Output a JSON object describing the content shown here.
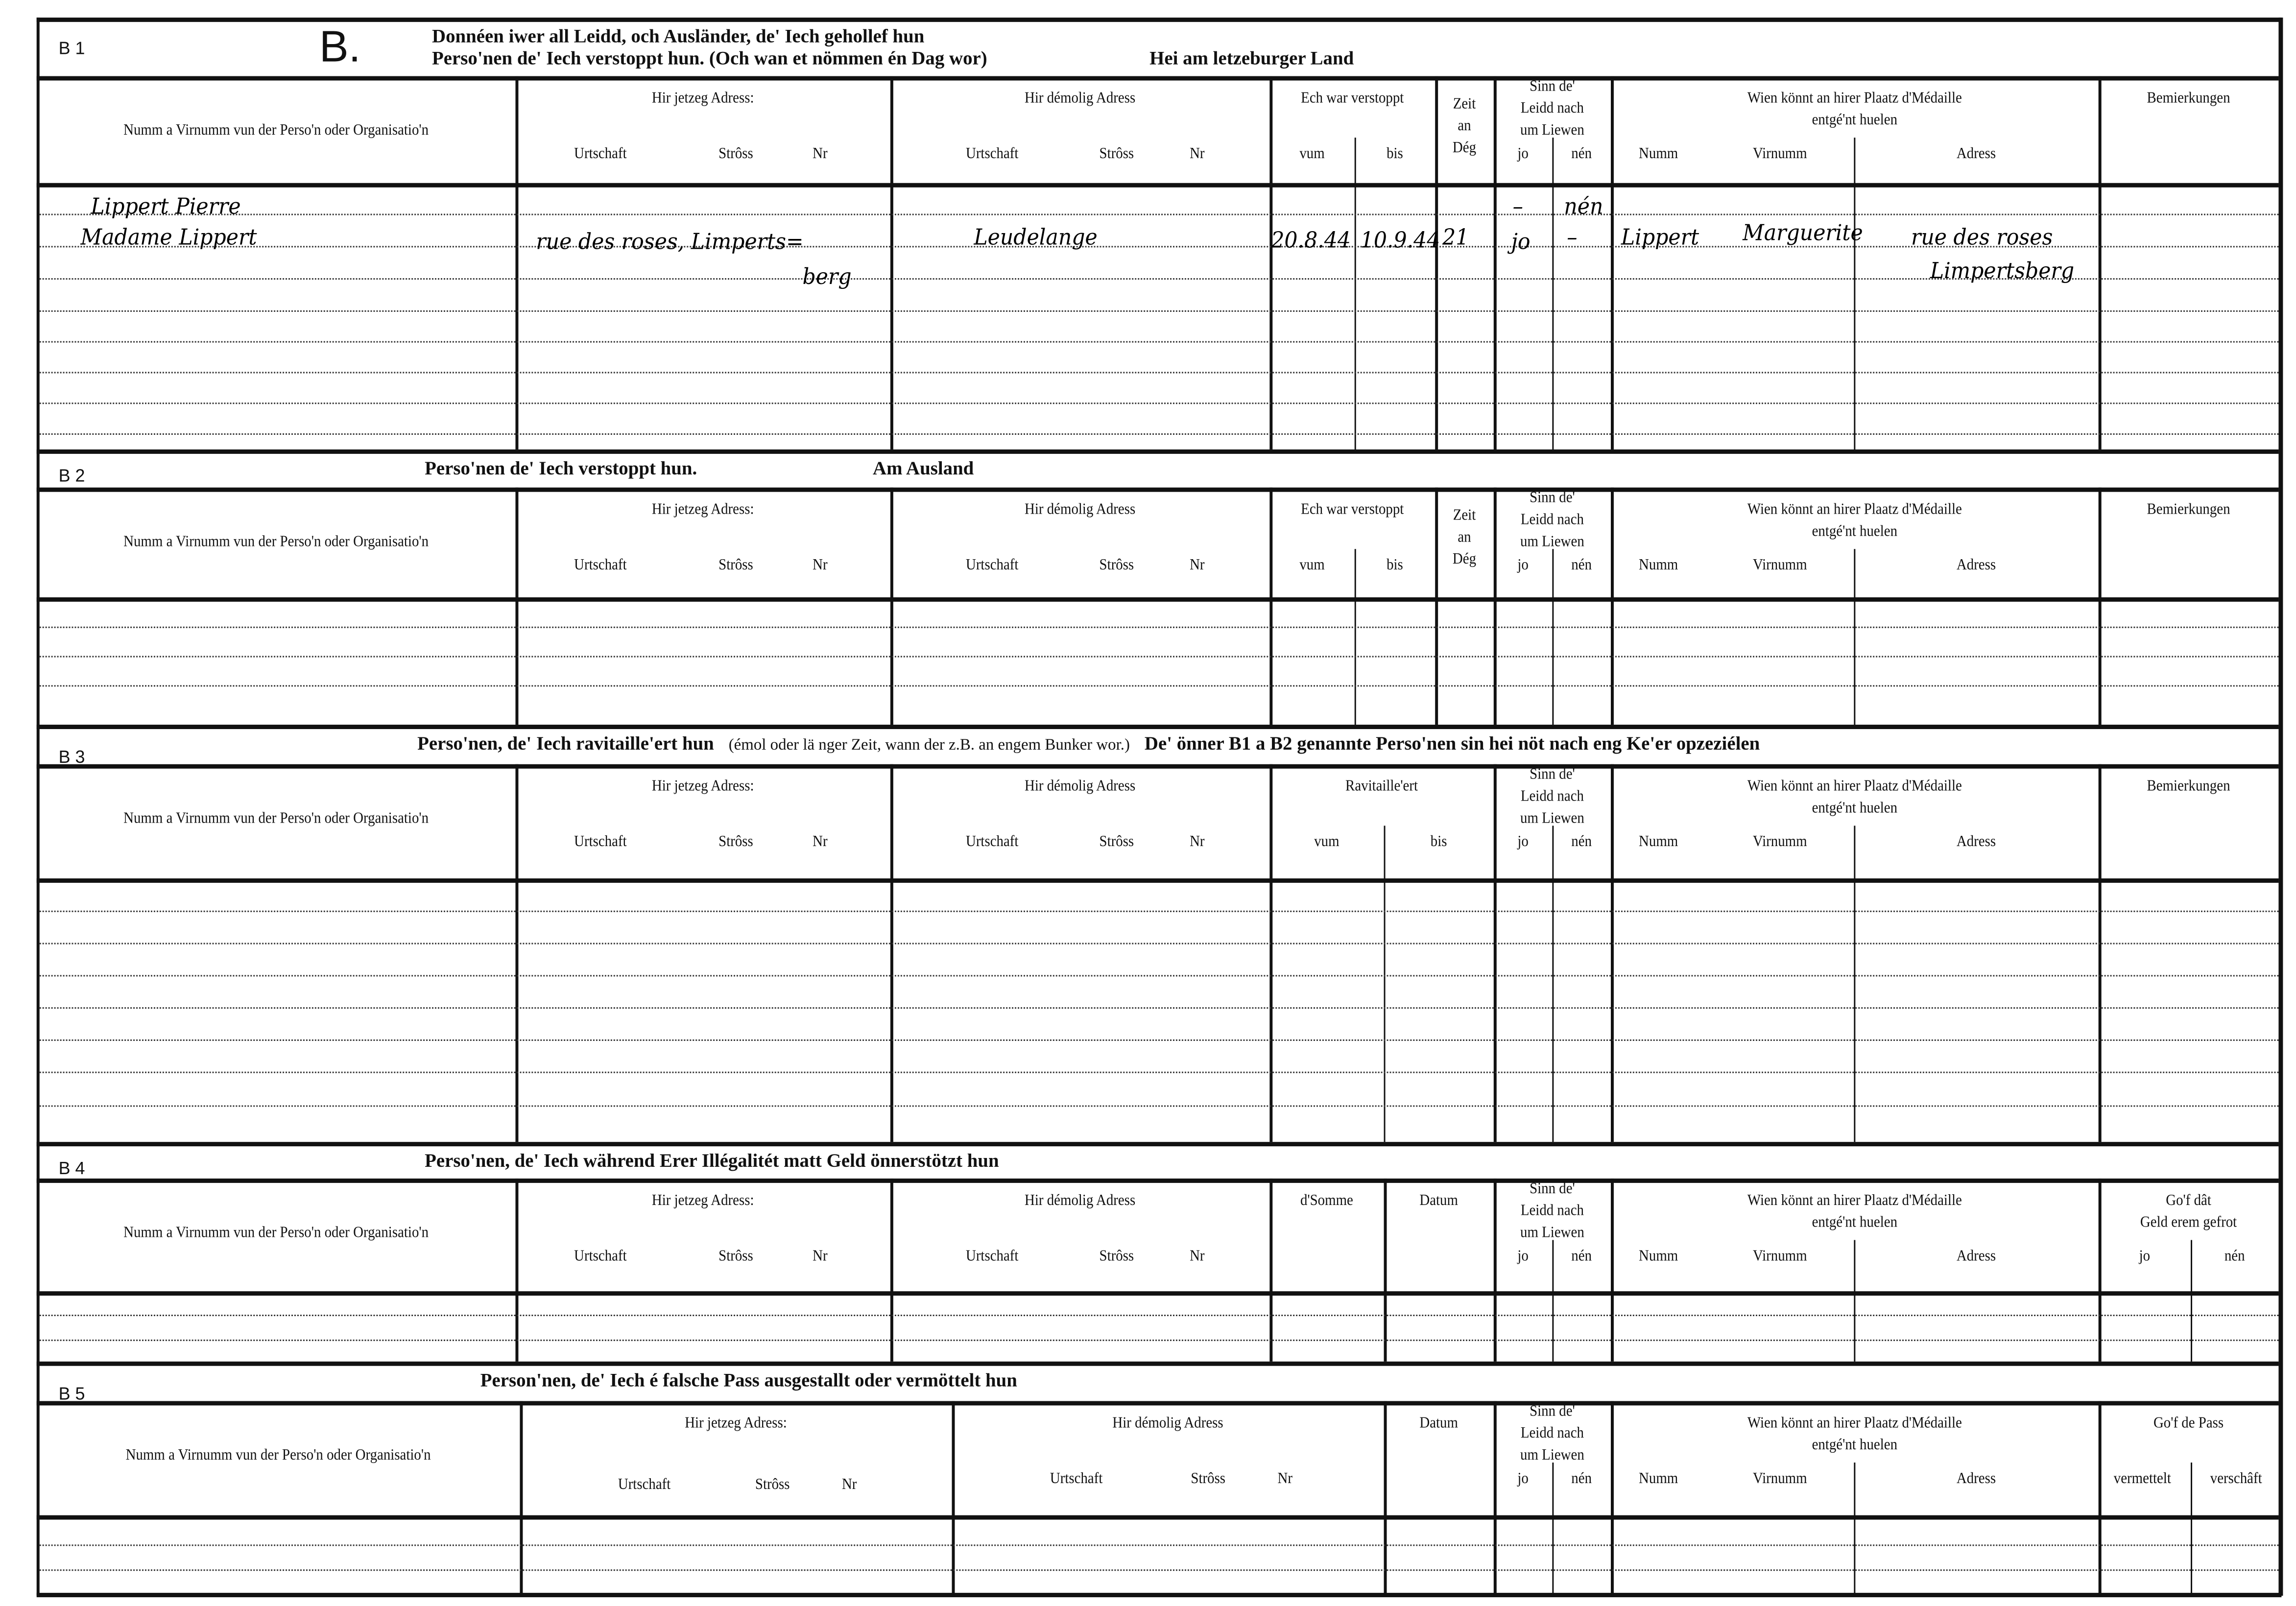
{
  "form_letter": "B.",
  "labels": {
    "name": "Numm a Virnumm vun der Perso'n oder Organisatio'n",
    "now_addr": "Hir jetzeg Adress:",
    "former_addr": "Hir démolig Adress",
    "town": "Urtschaft",
    "street": "Strôss",
    "nr": "Nr",
    "hidden": "Ech war verstoppt",
    "from": "vum",
    "to": "bis",
    "days": "Zeit\nan\nDég",
    "alive": "Sinn de'\nLeidd nach\num Liewen",
    "yes": "jo",
    "no": "nén",
    "medal": "Wien könnt an hirer Plaatz d'Médaille\nentgé'nt huelen",
    "last": "Numm",
    "first": "Virnumm",
    "address": "Adress",
    "remarks": "Bemierkungen",
    "supplied": "Ravitaille'ert",
    "sum": "d'Somme",
    "date": "Datum",
    "money_back": "Go'f dât\nGeld erem gefrot",
    "pass_given": "Go'f de Pass",
    "mediated": "vermettelt",
    "procured": "verschâft"
  },
  "sections": [
    {
      "code": "B 1",
      "title_lines": [
        "Donnéen iwer all Leidd, och Ausländer, de' Iech gehollef hun",
        "Perso'nen de' Iech verstoppt hun. (Och wan et nömmen én Dag wor)"
      ],
      "title_extra": "Hei am letzeburger Land"
    },
    {
      "code": "B 2",
      "title_parts": [
        "Perso'nen de' Iech verstoppt hun.",
        "Am Ausland"
      ]
    },
    {
      "code": "B 3",
      "title_parts": [
        "Perso'nen, de' Iech ravitaille'ert hun",
        "(émol oder lä nger Zeit, wann der z.B. an engem Bunker wor.)",
        "De' önner B1 a B2 genannte Perso'nen sin hei nöt nach eng Ke'er opzeziélen"
      ]
    },
    {
      "code": "B 4",
      "title_parts": [
        "Perso'nen, de' Iech während Erer Illégalitét matt Geld önnerstötzt hun"
      ]
    },
    {
      "code": "B 5",
      "title_parts": [
        "Person'nen, de' Iech é falsche Pass ausgestallt oder vermöttelt hun"
      ]
    }
  ],
  "b1_entries": {
    "name_1": "Lippert Pierre",
    "name_2": "Madame Lippert",
    "current_address_1": "rue des roses, Limperts=",
    "current_address_2": "berg",
    "former_address": "Leudelange",
    "hidden_from": "20.8.44",
    "hidden_to": "10.9.44",
    "days": "21",
    "alive_yes_1": "–",
    "alive_no_1": "nén",
    "alive_yes_2": "jo",
    "alive_no_2": "–",
    "medal_last": "Lippert",
    "medal_first": "Marguerite",
    "medal_address_1": "rue des roses",
    "medal_address_2": "Limpertsberg"
  }
}
